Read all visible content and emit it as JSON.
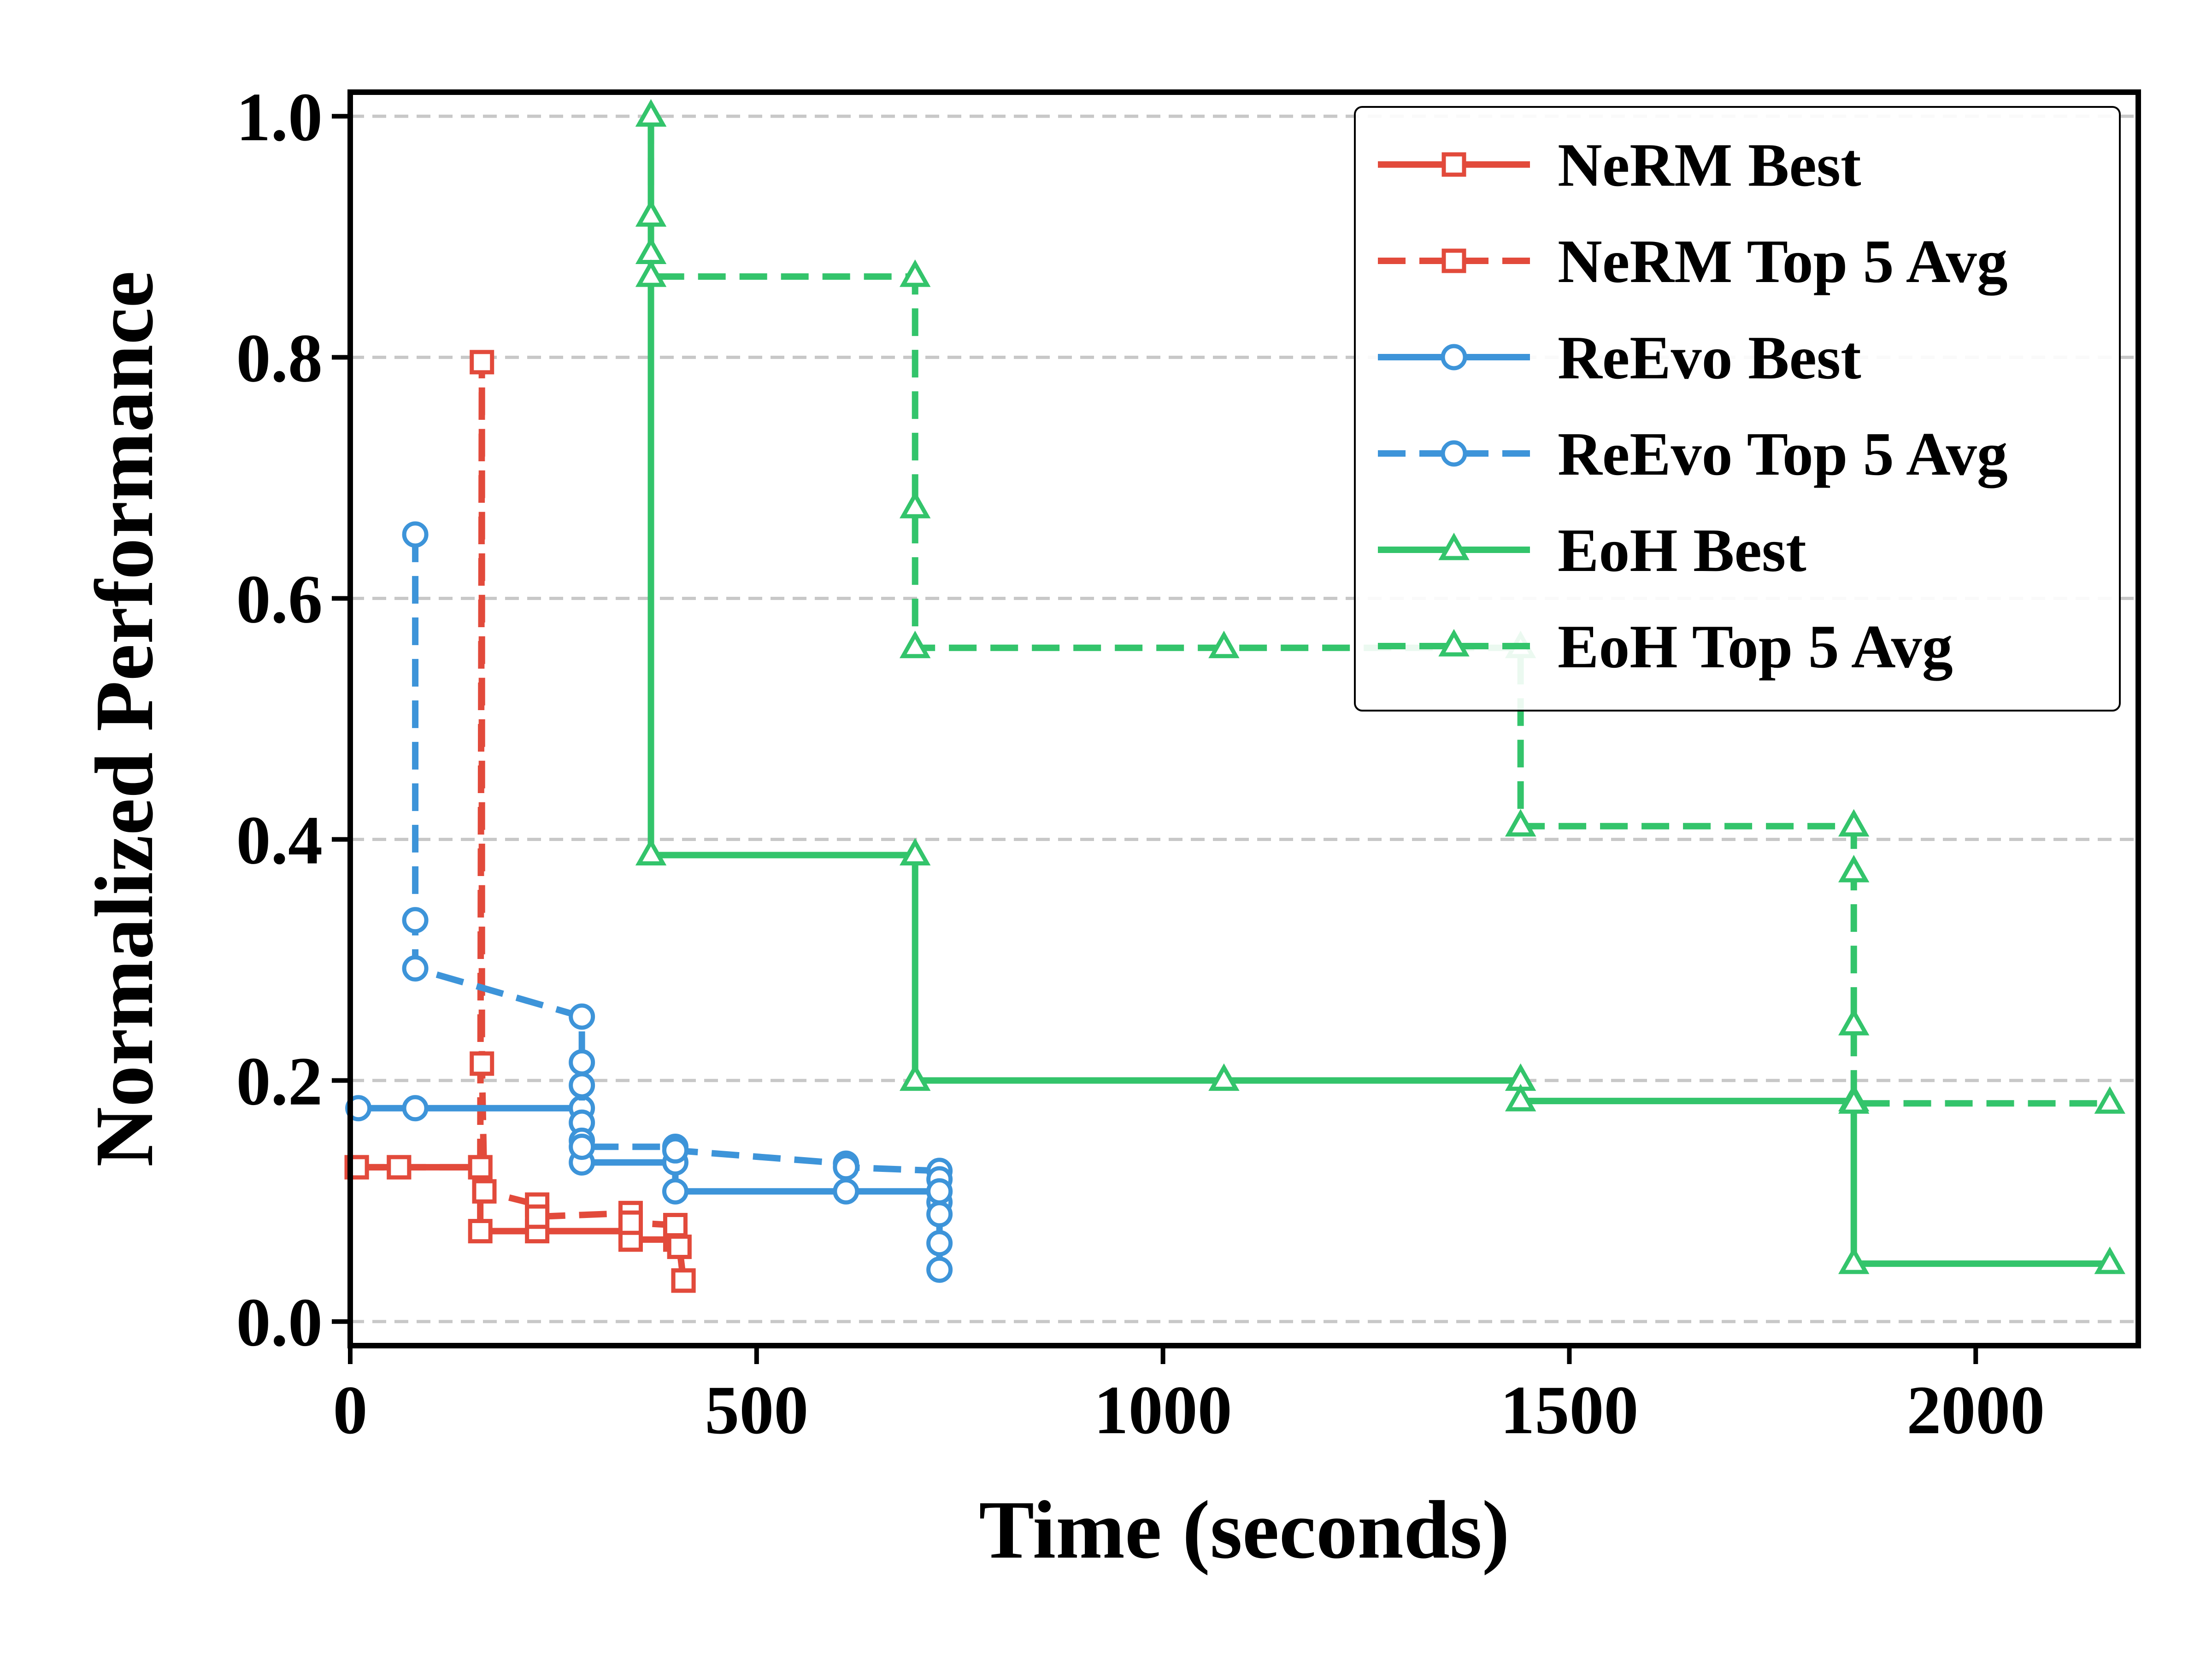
{
  "chart_data": {
    "type": "line",
    "title": "",
    "xlabel": "Time (seconds)",
    "ylabel": "Normalized Performance",
    "xlim": [
      0,
      2200
    ],
    "ylim": [
      -0.02,
      1.02
    ],
    "xticks": [
      0,
      500,
      1000,
      1500,
      2000
    ],
    "xtick_labels": [
      "0",
      "500",
      "1000",
      "1500",
      "2000"
    ],
    "yticks": [
      0.0,
      0.2,
      0.4,
      0.6,
      0.8,
      1.0
    ],
    "ytick_labels": [
      "0.0",
      "0.2",
      "0.4",
      "0.6",
      "0.8",
      "1.0"
    ],
    "grid": "horizontal-dashed",
    "legend_position": "top-right",
    "series": [
      {
        "name": "NeRM Best",
        "color": "#e24a3b",
        "style": "solid",
        "marker": "square",
        "points": [
          [
            8,
            0.128
          ],
          [
            60,
            0.128
          ],
          [
            160,
            0.128
          ],
          [
            160,
            0.075
          ],
          [
            230,
            0.075
          ],
          [
            345,
            0.075
          ],
          [
            345,
            0.068
          ],
          [
            400,
            0.068
          ],
          [
            405,
            0.062
          ],
          [
            410,
            0.034
          ]
        ]
      },
      {
        "name": "NeRM Top 5 Avg",
        "color": "#e24a3b",
        "style": "dashed",
        "marker": "square",
        "points": [
          [
            8,
            0.128
          ],
          [
            60,
            0.128
          ],
          [
            160,
            0.128
          ],
          [
            162,
            0.796
          ],
          [
            162,
            0.214
          ],
          [
            165,
            0.108
          ],
          [
            230,
            0.097
          ],
          [
            230,
            0.087
          ],
          [
            345,
            0.09
          ],
          [
            345,
            0.082
          ],
          [
            400,
            0.08
          ],
          [
            405,
            0.062
          ],
          [
            410,
            0.034
          ]
        ]
      },
      {
        "name": "ReEvo Best",
        "color": "#3d94d9",
        "style": "solid",
        "marker": "circle",
        "points": [
          [
            10,
            0.177
          ],
          [
            80,
            0.177
          ],
          [
            285,
            0.177
          ],
          [
            285,
            0.132
          ],
          [
            400,
            0.132
          ],
          [
            400,
            0.108
          ],
          [
            610,
            0.108
          ],
          [
            725,
            0.108
          ],
          [
            725,
            0.099
          ],
          [
            725,
            0.089
          ],
          [
            725,
            0.065
          ],
          [
            725,
            0.043
          ]
        ]
      },
      {
        "name": "ReEvo Top 5 Avg",
        "color": "#3d94d9",
        "style": "dashed",
        "marker": "circle",
        "points": [
          [
            80,
            0.653
          ],
          [
            80,
            0.333
          ],
          [
            80,
            0.293
          ],
          [
            285,
            0.253
          ],
          [
            285,
            0.215
          ],
          [
            285,
            0.196
          ],
          [
            285,
            0.165
          ],
          [
            285,
            0.15
          ],
          [
            285,
            0.145
          ],
          [
            400,
            0.145
          ],
          [
            400,
            0.142
          ],
          [
            610,
            0.131
          ],
          [
            610,
            0.128
          ],
          [
            725,
            0.125
          ],
          [
            725,
            0.118
          ],
          [
            725,
            0.108
          ]
        ]
      },
      {
        "name": "EoH Best",
        "color": "#33c46b",
        "style": "solid",
        "marker": "triangle",
        "points": [
          [
            370,
            1.0
          ],
          [
            370,
            0.387
          ],
          [
            695,
            0.387
          ],
          [
            695,
            0.2
          ],
          [
            1075,
            0.2
          ],
          [
            1440,
            0.2
          ],
          [
            1440,
            0.183
          ],
          [
            1850,
            0.183
          ],
          [
            1850,
            0.048
          ],
          [
            2165,
            0.048
          ]
        ]
      },
      {
        "name": "EoH Top 5 Avg",
        "color": "#33c46b",
        "style": "dashed",
        "marker": "triangle",
        "points": [
          [
            370,
            1.0
          ],
          [
            370,
            0.917
          ],
          [
            370,
            0.886
          ],
          [
            370,
            0.867
          ],
          [
            695,
            0.867
          ],
          [
            695,
            0.675
          ],
          [
            695,
            0.559
          ],
          [
            1075,
            0.559
          ],
          [
            1440,
            0.559
          ],
          [
            1440,
            0.411
          ],
          [
            1850,
            0.411
          ],
          [
            1850,
            0.373
          ],
          [
            1850,
            0.246
          ],
          [
            1850,
            0.181
          ],
          [
            2165,
            0.181
          ]
        ]
      }
    ]
  }
}
